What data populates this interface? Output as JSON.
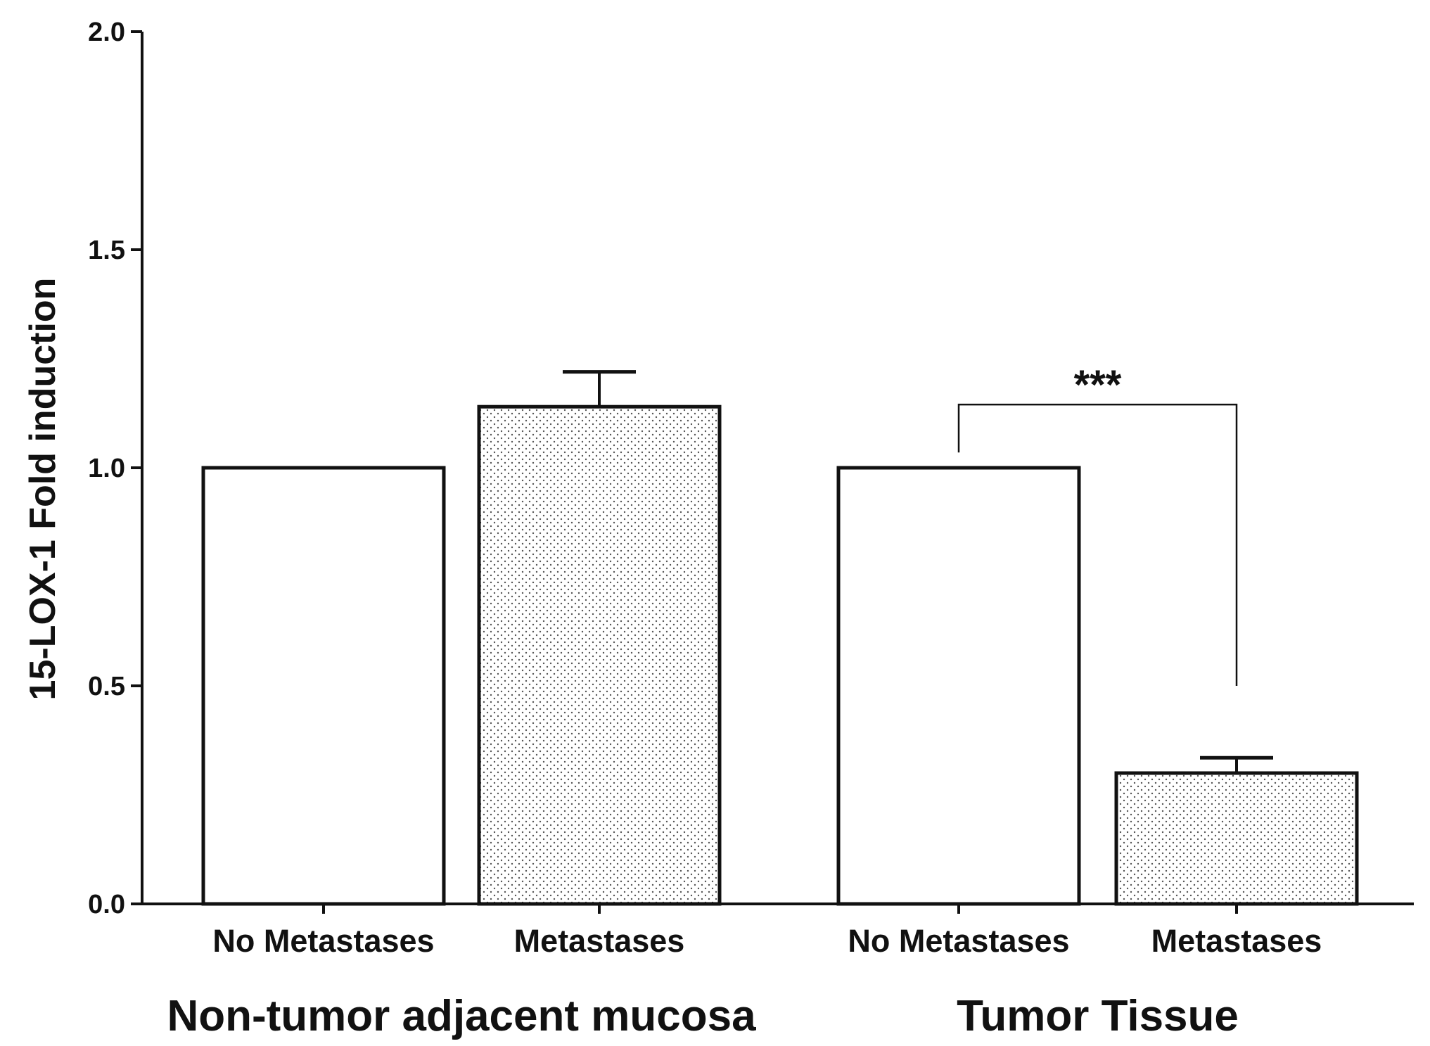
{
  "chart_data": {
    "type": "bar",
    "ylabel": "15-LOX-1 Fold induction",
    "ylim": [
      0,
      2.0
    ],
    "yticks": [
      "0.0",
      "0.5",
      "1.0",
      "1.5",
      "2.0"
    ],
    "grid": false,
    "groups": [
      {
        "label": "Non-tumor adjacent mucosa",
        "bars": [
          {
            "category": "No Metastases",
            "value": 1.0,
            "error": 0,
            "pattern": "none"
          },
          {
            "category": "Metastases",
            "value": 1.14,
            "error": 0.08,
            "pattern": "dots"
          }
        ]
      },
      {
        "label": "Tumor Tissue",
        "bars": [
          {
            "category": "No Metastases",
            "value": 1.0,
            "error": 0,
            "pattern": "none"
          },
          {
            "category": "Metastases",
            "value": 0.3,
            "error": 0.035,
            "pattern": "dots"
          }
        ]
      }
    ],
    "annotations": [
      {
        "text": "***",
        "group": 1,
        "from_bar": 0,
        "to_bar": 1
      }
    ],
    "colors": {
      "bar_fill": "#ffffff",
      "stroke": "#111111",
      "dot": "#555555"
    }
  }
}
